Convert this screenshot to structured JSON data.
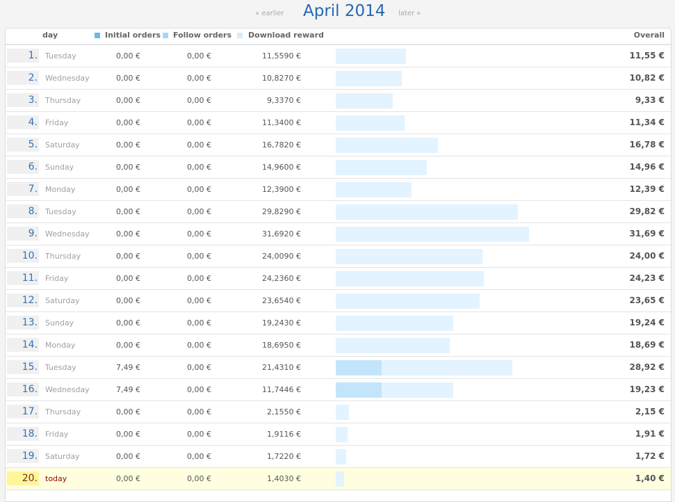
{
  "nav": {
    "earlier": "« earlier",
    "title": "April 2014",
    "later": "later »"
  },
  "header": {
    "day": "day",
    "initial_orders": "Initial orders",
    "follow_orders": "Follow orders",
    "download_reward": "Download reward",
    "overall": "Overall"
  },
  "colors": {
    "initial_orders": "#6ab8ec",
    "follow_orders": "#a6d6f6",
    "download_reward": "#d8edfb"
  },
  "rows": [
    {
      "num": "1.",
      "day": "Tuesday",
      "initial": "0,00 €",
      "follow": "0,00 €",
      "download": "11,5590 €",
      "overall": "11,55 €",
      "initial_value": 0,
      "download_value": 11.559
    },
    {
      "num": "2.",
      "day": "Wednesday",
      "initial": "0,00 €",
      "follow": "0,00 €",
      "download": "10,8270 €",
      "overall": "10,82 €",
      "initial_value": 0,
      "download_value": 10.827
    },
    {
      "num": "3.",
      "day": "Thursday",
      "initial": "0,00 €",
      "follow": "0,00 €",
      "download": "9,3370 €",
      "overall": "9,33 €",
      "initial_value": 0,
      "download_value": 9.337
    },
    {
      "num": "4.",
      "day": "Friday",
      "initial": "0,00 €",
      "follow": "0,00 €",
      "download": "11,3400 €",
      "overall": "11,34 €",
      "initial_value": 0,
      "download_value": 11.34
    },
    {
      "num": "5.",
      "day": "Saturday",
      "initial": "0,00 €",
      "follow": "0,00 €",
      "download": "16,7820 €",
      "overall": "16,78 €",
      "initial_value": 0,
      "download_value": 16.782
    },
    {
      "num": "6.",
      "day": "Sunday",
      "initial": "0,00 €",
      "follow": "0,00 €",
      "download": "14,9600 €",
      "overall": "14,96 €",
      "initial_value": 0,
      "download_value": 14.96
    },
    {
      "num": "7.",
      "day": "Monday",
      "initial": "0,00 €",
      "follow": "0,00 €",
      "download": "12,3900 €",
      "overall": "12,39 €",
      "initial_value": 0,
      "download_value": 12.39
    },
    {
      "num": "8.",
      "day": "Tuesday",
      "initial": "0,00 €",
      "follow": "0,00 €",
      "download": "29,8290 €",
      "overall": "29,82 €",
      "initial_value": 0,
      "download_value": 29.829
    },
    {
      "num": "9.",
      "day": "Wednesday",
      "initial": "0,00 €",
      "follow": "0,00 €",
      "download": "31,6920 €",
      "overall": "31,69 €",
      "initial_value": 0,
      "download_value": 31.692
    },
    {
      "num": "10.",
      "day": "Thursday",
      "initial": "0,00 €",
      "follow": "0,00 €",
      "download": "24,0090 €",
      "overall": "24,00 €",
      "initial_value": 0,
      "download_value": 24.009
    },
    {
      "num": "11.",
      "day": "Friday",
      "initial": "0,00 €",
      "follow": "0,00 €",
      "download": "24,2360 €",
      "overall": "24,23 €",
      "initial_value": 0,
      "download_value": 24.236
    },
    {
      "num": "12.",
      "day": "Saturday",
      "initial": "0,00 €",
      "follow": "0,00 €",
      "download": "23,6540 €",
      "overall": "23,65 €",
      "initial_value": 0,
      "download_value": 23.654
    },
    {
      "num": "13.",
      "day": "Sunday",
      "initial": "0,00 €",
      "follow": "0,00 €",
      "download": "19,2430 €",
      "overall": "19,24 €",
      "initial_value": 0,
      "download_value": 19.243
    },
    {
      "num": "14.",
      "day": "Monday",
      "initial": "0,00 €",
      "follow": "0,00 €",
      "download": "18,6950 €",
      "overall": "18,69 €",
      "initial_value": 0,
      "download_value": 18.695
    },
    {
      "num": "15.",
      "day": "Tuesday",
      "initial": "7,49 €",
      "follow": "0,00 €",
      "download": "21,4310 €",
      "overall": "28,92 €",
      "initial_value": 7.49,
      "download_value": 21.431
    },
    {
      "num": "16.",
      "day": "Wednesday",
      "initial": "7,49 €",
      "follow": "0,00 €",
      "download": "11,7446 €",
      "overall": "19,23 €",
      "initial_value": 7.49,
      "download_value": 11.7446
    },
    {
      "num": "17.",
      "day": "Thursday",
      "initial": "0,00 €",
      "follow": "0,00 €",
      "download": "2,1550 €",
      "overall": "2,15 €",
      "initial_value": 0,
      "download_value": 2.155
    },
    {
      "num": "18.",
      "day": "Friday",
      "initial": "0,00 €",
      "follow": "0,00 €",
      "download": "1,9116 €",
      "overall": "1,91 €",
      "initial_value": 0,
      "download_value": 1.9116
    },
    {
      "num": "19.",
      "day": "Saturday",
      "initial": "0,00 €",
      "follow": "0,00 €",
      "download": "1,7220 €",
      "overall": "1,72 €",
      "initial_value": 0,
      "download_value": 1.722
    },
    {
      "num": "20.",
      "day": "today",
      "initial": "0,00 €",
      "follow": "0,00 €",
      "download": "1,4030 €",
      "overall": "1,40 €",
      "initial_value": 0,
      "download_value": 1.403,
      "is_today": true
    }
  ]
}
